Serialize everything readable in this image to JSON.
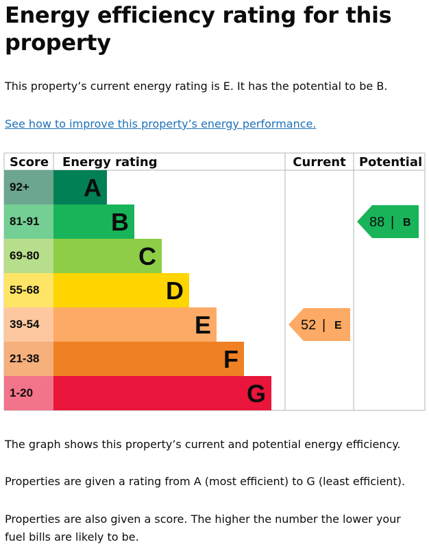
{
  "title": "Energy efficiency rating for this property",
  "intro": "This property’s current energy rating is E. It has the potential to be B.",
  "improve_link": "See how to improve this property’s energy performance.",
  "chart_data": {
    "type": "bar",
    "headers": {
      "score": "Score",
      "rating": "Energy rating",
      "current": "Current",
      "potential": "Potential"
    },
    "bands": [
      {
        "score": "92+",
        "letter": "A",
        "color": "#008054",
        "score_bg": "#6ca68f"
      },
      {
        "score": "81-91",
        "letter": "B",
        "color": "#19b459",
        "score_bg": "#74cf94"
      },
      {
        "score": "69-80",
        "letter": "C",
        "color": "#8dce46",
        "score_bg": "#b7de8a"
      },
      {
        "score": "55-68",
        "letter": "D",
        "color": "#ffd500",
        "score_bg": "#ffe566"
      },
      {
        "score": "39-54",
        "letter": "E",
        "color": "#fcaa65",
        "score_bg": "#fdc8a0"
      },
      {
        "score": "21-38",
        "letter": "F",
        "color": "#ef8023",
        "score_bg": "#f5b07b"
      },
      {
        "score": "1-20",
        "letter": "G",
        "color": "#e9153b",
        "score_bg": "#f2748a"
      }
    ],
    "current": {
      "value": 52,
      "letter": "E",
      "separator": "|",
      "color": "#fcaa65"
    },
    "potential": {
      "value": 88,
      "letter": "B",
      "separator": "|",
      "color": "#19b459"
    }
  },
  "footer": {
    "p1": "The graph shows this property’s current and potential energy efficiency.",
    "p2": "Properties are given a rating from A (most efficient) to G (least efficient).",
    "p3": "Properties are also given a score. The higher the number the lower your fuel bills are likely to be."
  }
}
